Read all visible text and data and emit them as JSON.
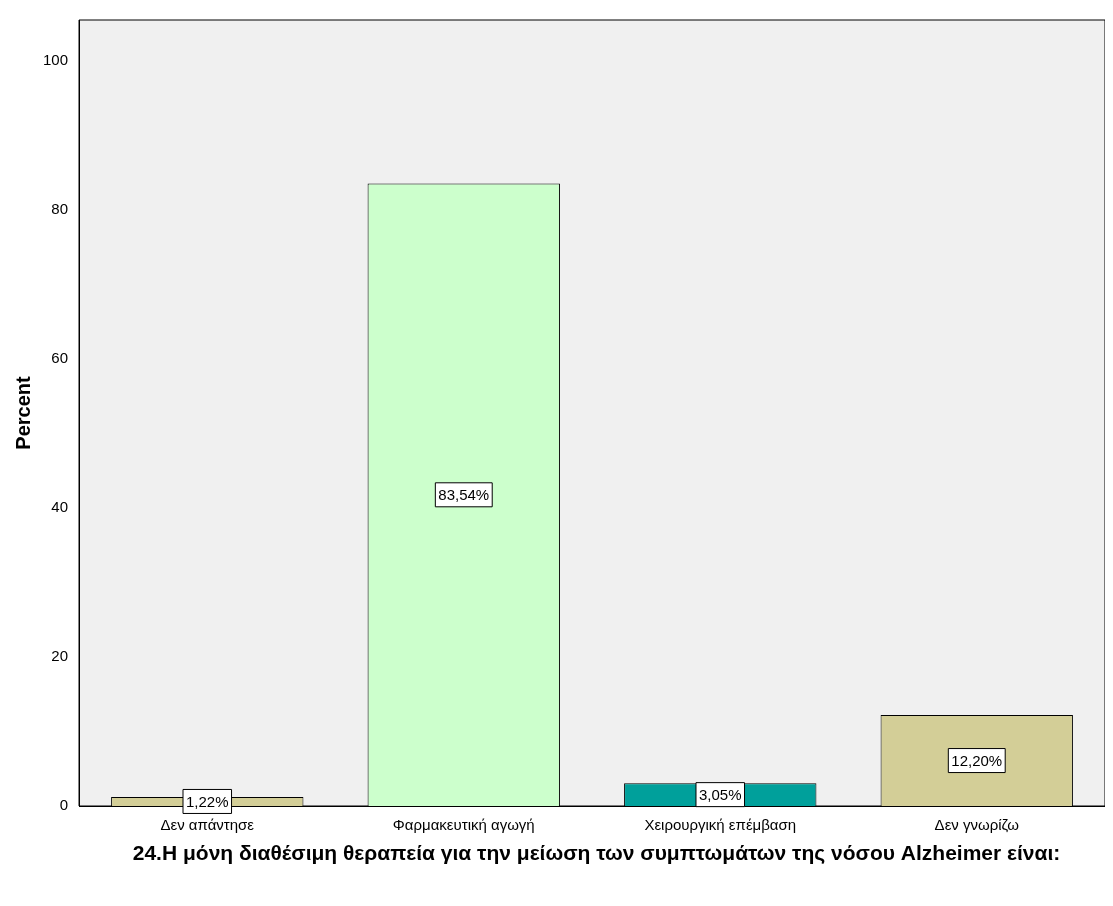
{
  "chart_data": {
    "type": "bar",
    "xlabel": "24.Η μόνη διαθέσιμη θεραπεία για την μείωση των συμπτωμάτων της νόσου Alzheimer είναι:",
    "ylabel": "Percent",
    "categories": [
      "Δεν απάντησε",
      "Φαρμακευτική αγωγή",
      "Χειρουργική επέμβαση",
      "Δεν γνωρίζω"
    ],
    "values": [
      1.22,
      83.54,
      3.05,
      12.2
    ],
    "colors": [
      "#d3ce97",
      "#ccffcc",
      "#00a09b",
      "#d3ce97"
    ],
    "value_labels": [
      "1,22%",
      "83,54%",
      "3,05%",
      "12,20%"
    ],
    "ylim": [
      0,
      105.5
    ],
    "yticks": [
      0,
      20,
      40,
      60,
      80,
      100
    ],
    "grid": false,
    "legend": false
  }
}
